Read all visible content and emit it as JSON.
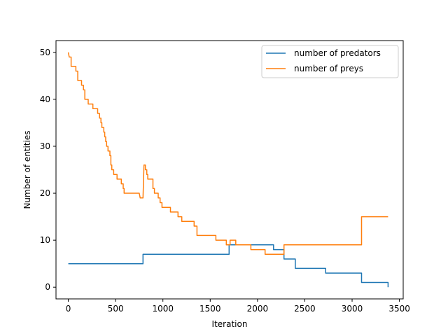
{
  "chart_data": {
    "type": "line",
    "title": "",
    "xlabel": "Iteration",
    "ylabel": "Number of entities",
    "xlim": [
      -130,
      3540
    ],
    "ylim": [
      -2.5,
      52.5
    ],
    "xticks": [
      0,
      500,
      1000,
      1500,
      2000,
      2500,
      3000,
      3500
    ],
    "yticks": [
      0,
      10,
      20,
      30,
      40,
      50
    ],
    "grid": false,
    "legend_position": "top-right",
    "series": [
      {
        "name": "number of predators",
        "color": "#1f77b4",
        "step": true,
        "points": [
          [
            0,
            5
          ],
          [
            790,
            5
          ],
          [
            790,
            7
          ],
          [
            1700,
            7
          ],
          [
            1700,
            9
          ],
          [
            2170,
            9
          ],
          [
            2170,
            8
          ],
          [
            2280,
            8
          ],
          [
            2280,
            6
          ],
          [
            2400,
            6
          ],
          [
            2400,
            4
          ],
          [
            2420,
            4
          ],
          [
            2720,
            4
          ],
          [
            2720,
            3
          ],
          [
            3100,
            3
          ],
          [
            3100,
            1
          ],
          [
            3380,
            1
          ],
          [
            3380,
            0
          ]
        ]
      },
      {
        "name": "number of preys",
        "color": "#ff7f0e",
        "step": true,
        "points": [
          [
            0,
            50
          ],
          [
            10,
            49
          ],
          [
            30,
            49
          ],
          [
            30,
            47
          ],
          [
            80,
            47
          ],
          [
            80,
            46
          ],
          [
            100,
            46
          ],
          [
            100,
            44
          ],
          [
            140,
            44
          ],
          [
            140,
            43
          ],
          [
            160,
            43
          ],
          [
            160,
            42
          ],
          [
            175,
            42
          ],
          [
            175,
            40
          ],
          [
            210,
            40
          ],
          [
            210,
            39
          ],
          [
            260,
            39
          ],
          [
            260,
            38
          ],
          [
            310,
            38
          ],
          [
            310,
            37
          ],
          [
            330,
            37
          ],
          [
            330,
            36
          ],
          [
            345,
            36
          ],
          [
            345,
            35
          ],
          [
            355,
            35
          ],
          [
            355,
            34
          ],
          [
            375,
            34
          ],
          [
            375,
            33
          ],
          [
            385,
            33
          ],
          [
            385,
            32
          ],
          [
            395,
            32
          ],
          [
            395,
            31
          ],
          [
            405,
            31
          ],
          [
            405,
            30
          ],
          [
            420,
            30
          ],
          [
            420,
            29
          ],
          [
            440,
            29
          ],
          [
            440,
            28
          ],
          [
            450,
            28
          ],
          [
            450,
            26
          ],
          [
            460,
            26
          ],
          [
            460,
            25
          ],
          [
            480,
            25
          ],
          [
            480,
            24
          ],
          [
            515,
            24
          ],
          [
            515,
            23
          ],
          [
            560,
            23
          ],
          [
            560,
            22
          ],
          [
            580,
            22
          ],
          [
            580,
            21
          ],
          [
            590,
            21
          ],
          [
            590,
            20
          ],
          [
            700,
            20
          ],
          [
            700,
            20
          ],
          [
            750,
            20
          ],
          [
            760,
            19
          ],
          [
            790,
            19
          ],
          [
            800,
            26
          ],
          [
            815,
            26
          ],
          [
            815,
            25
          ],
          [
            830,
            25
          ],
          [
            830,
            24
          ],
          [
            840,
            24
          ],
          [
            840,
            23
          ],
          [
            895,
            23
          ],
          [
            895,
            21
          ],
          [
            910,
            21
          ],
          [
            910,
            20
          ],
          [
            950,
            20
          ],
          [
            950,
            19
          ],
          [
            970,
            19
          ],
          [
            970,
            18
          ],
          [
            990,
            18
          ],
          [
            990,
            17
          ],
          [
            1080,
            17
          ],
          [
            1080,
            16
          ],
          [
            1160,
            16
          ],
          [
            1160,
            15
          ],
          [
            1200,
            15
          ],
          [
            1200,
            14
          ],
          [
            1330,
            14
          ],
          [
            1330,
            13
          ],
          [
            1360,
            13
          ],
          [
            1360,
            11
          ],
          [
            1560,
            11
          ],
          [
            1560,
            10
          ],
          [
            1670,
            10
          ],
          [
            1670,
            9
          ],
          [
            1710,
            9
          ],
          [
            1710,
            10
          ],
          [
            1770,
            10
          ],
          [
            1770,
            9
          ],
          [
            1930,
            9
          ],
          [
            1930,
            8
          ],
          [
            2080,
            8
          ],
          [
            2080,
            7
          ],
          [
            2280,
            7
          ],
          [
            2280,
            9
          ],
          [
            3100,
            9
          ],
          [
            3100,
            15
          ],
          [
            3380,
            15
          ]
        ]
      }
    ]
  }
}
